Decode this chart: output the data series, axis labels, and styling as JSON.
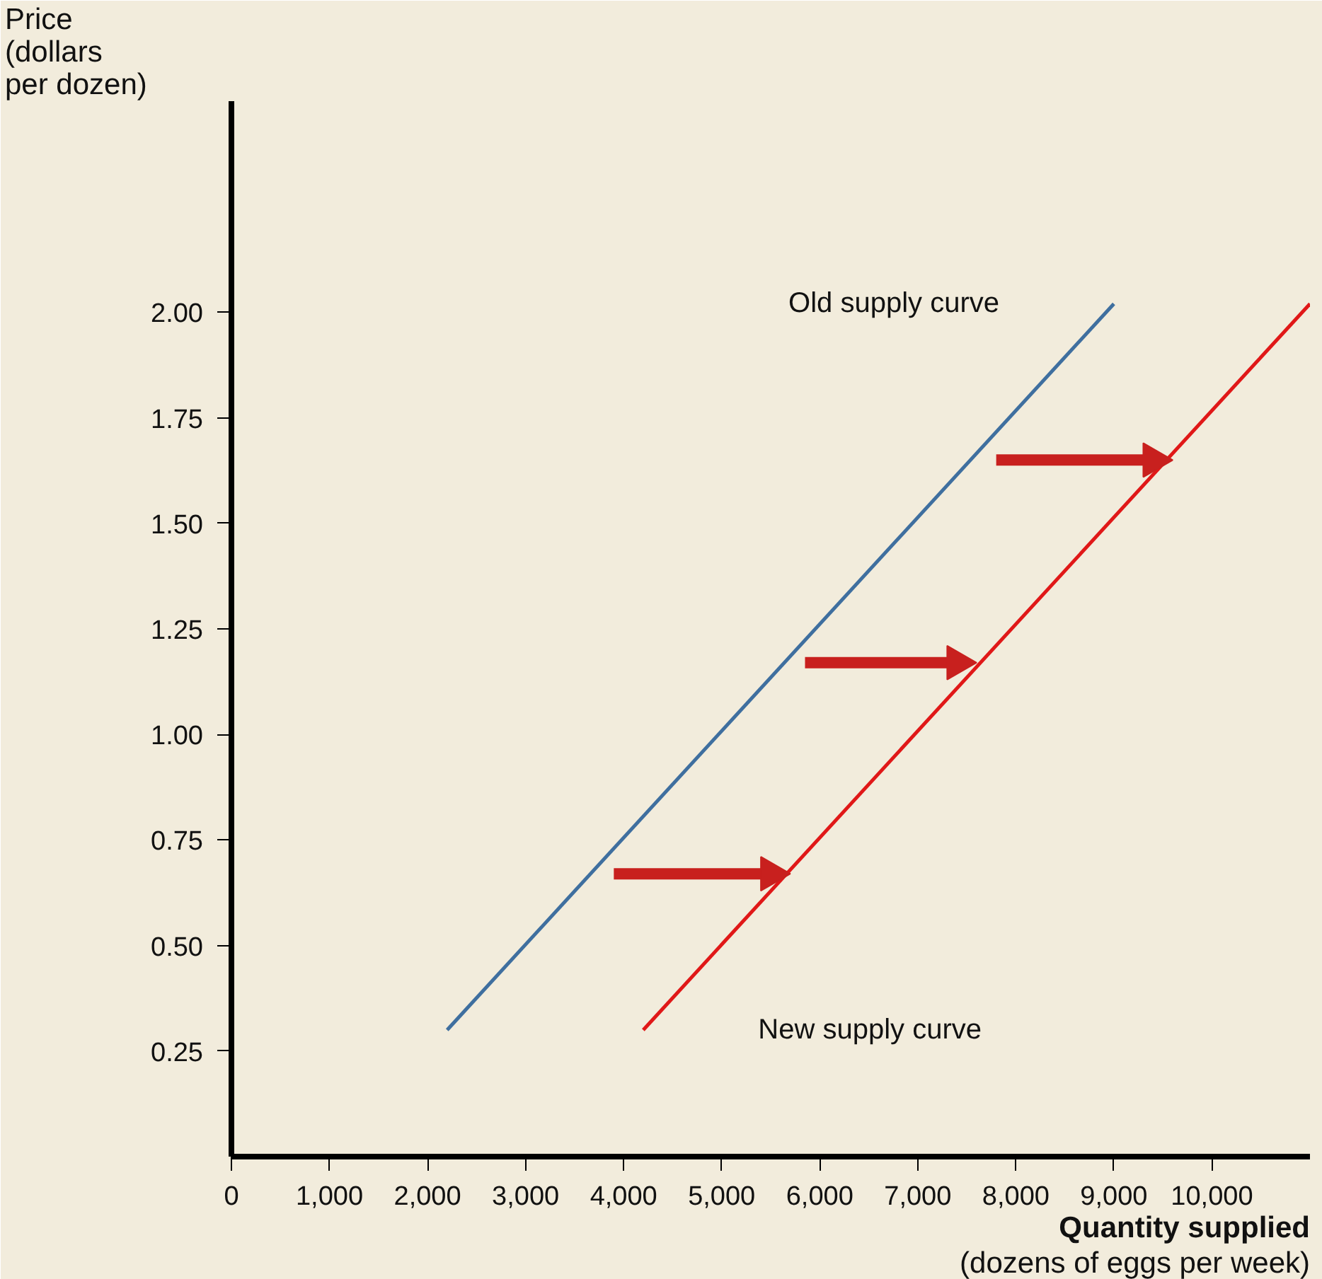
{
  "chart_data": {
    "type": "line",
    "xlabel": "Quantity supplied\n(dozens of eggs per week)",
    "ylabel": "Price\n(dollars\nper dozen)",
    "xlim": [
      0,
      11000
    ],
    "ylim": [
      0,
      2.5
    ],
    "xticks": [
      0,
      {
        "value": 1000,
        "label": "1,000"
      },
      {
        "value": 2000,
        "label": "2,000"
      },
      {
        "value": 3000,
        "label": "3,000"
      },
      {
        "value": 4000,
        "label": "4,000"
      },
      {
        "value": 5000,
        "label": "5,000"
      },
      {
        "value": 6000,
        "label": "6,000"
      },
      {
        "value": 7000,
        "label": "7,000"
      },
      {
        "value": 8000,
        "label": "8,000"
      },
      {
        "value": 9000,
        "label": "9,000"
      },
      {
        "value": 10000,
        "label": "10,000"
      }
    ],
    "yticks": [
      {
        "value": 0.25,
        "label": "0.25"
      },
      {
        "value": 0.5,
        "label": "0.50"
      },
      {
        "value": 0.75,
        "label": "0.75"
      },
      {
        "value": 1.0,
        "label": "1.00"
      },
      {
        "value": 1.25,
        "label": "1.25"
      },
      {
        "value": 1.5,
        "label": "1.50"
      },
      {
        "value": 1.75,
        "label": "1.75"
      },
      {
        "value": 2.0,
        "label": "2.00"
      }
    ],
    "grid": false,
    "marker": "none",
    "line_style": "solid",
    "series": [
      {
        "name": "Old supply curve",
        "color": "#3f6f9f",
        "x": [
          2200,
          9000
        ],
        "values": [
          0.3,
          2.02
        ]
      },
      {
        "name": "New supply curve",
        "color": "#e01818",
        "x": [
          4200,
          11000
        ],
        "values": [
          0.3,
          2.02
        ]
      },
      {
        "color": "#c8201e",
        "marker": "triangle",
        "x": [
          3900,
          5500
        ],
        "values": [
          0.67,
          0.67
        ]
      },
      {
        "color": "#c8201e",
        "marker": "triangle",
        "x": [
          5850,
          7400
        ],
        "values": [
          1.17,
          1.17
        ]
      },
      {
        "color": "#c8201e",
        "marker": "triangle",
        "x": [
          7800,
          9400
        ],
        "values": [
          1.65,
          1.65
        ]
      }
    ]
  }
}
